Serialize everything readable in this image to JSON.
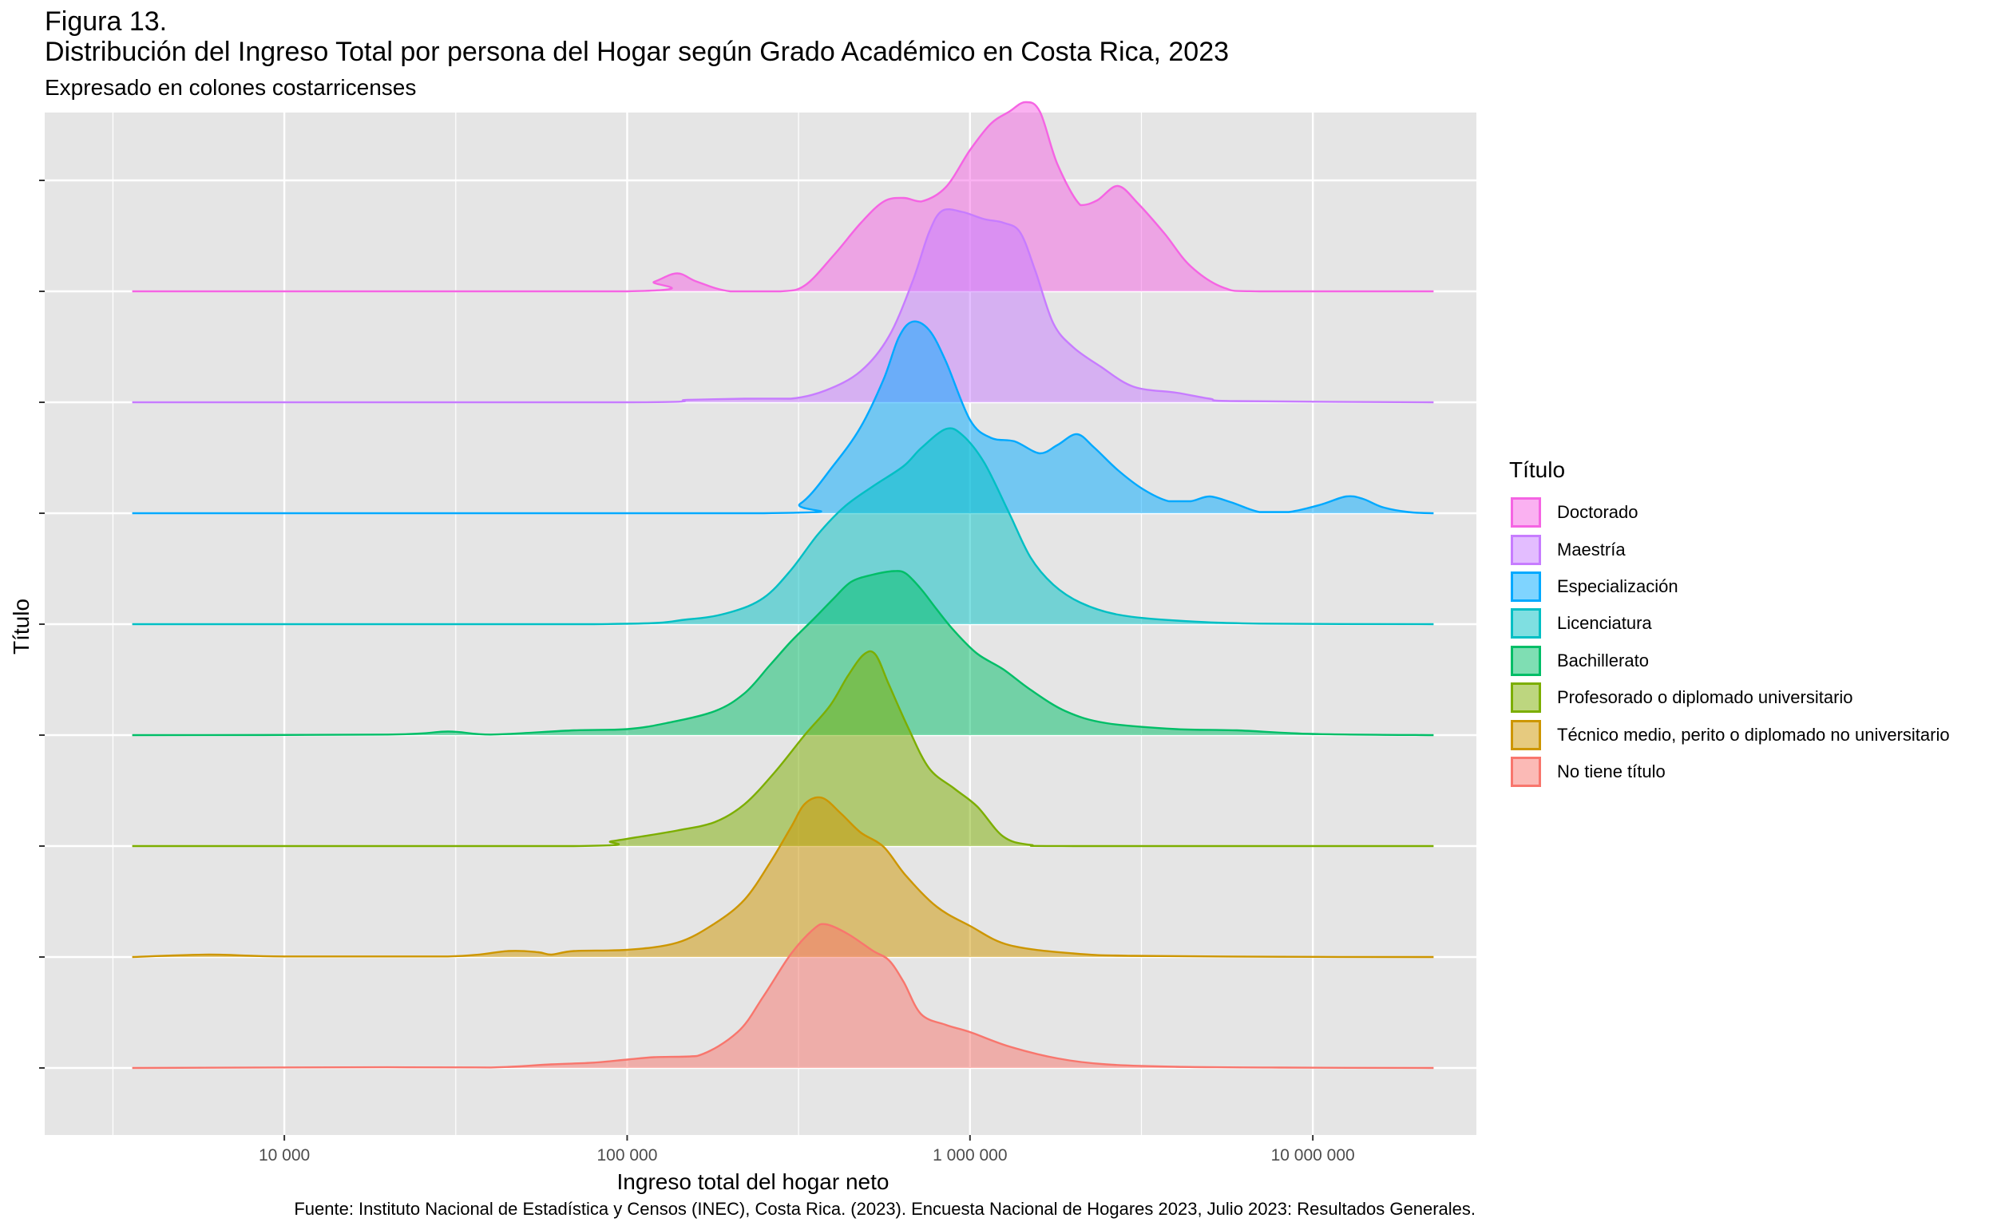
{
  "figure": {
    "label": "Figura 13.",
    "title": "Distribución del Ingreso Total por persona del Hogar según Grado Académico en Costa Rica, 2023",
    "subtitle": "Expresado en colones costarricenses",
    "caption": "Fuente: Instituto Nacional de Estadística y Censos (INEC), Costa Rica. (2023). Encuesta Nacional de Hogares 2023, Julio 2023: Resultados Generales."
  },
  "chart_data": {
    "type": "area",
    "subtype": "ridgeline density",
    "xlabel": "Ingreso total del hogar neto",
    "ylabel": "Título",
    "x_scale": "log10",
    "xlim": [
      2000,
      30000000
    ],
    "x_tick_values": [
      10000,
      100000,
      1000000,
      10000000
    ],
    "x_tick_labels": [
      "10 000",
      "100 000",
      "1 000 000",
      "10 000 000"
    ],
    "y_tick_labels": [],
    "grid": true,
    "background": "#e5e5e5",
    "legend": {
      "title": "Título",
      "position": "right",
      "entries": [
        "Doctorado",
        "Maestría",
        "Especialización",
        "Licenciatura",
        "Bachillerato",
        "Profesorado o diplomado universitario",
        "Técnico medio, perito o diplomado no universitario",
        "No tiene título"
      ]
    },
    "series": [
      {
        "name": "No tiene título",
        "color": "#F8766D",
        "points": [
          [
            3600,
            0
          ],
          [
            20000,
            0.006
          ],
          [
            40000,
            0.004
          ],
          [
            60000,
            0.03
          ],
          [
            80000,
            0.045
          ],
          [
            100000,
            0.07
          ],
          [
            120000,
            0.09
          ],
          [
            160000,
            0.1
          ],
          [
            210000,
            0.3
          ],
          [
            250000,
            0.6
          ],
          [
            300000,
            0.95
          ],
          [
            350000,
            1.16
          ],
          [
            380000,
            1.2
          ],
          [
            440000,
            1.12
          ],
          [
            520000,
            0.98
          ],
          [
            580000,
            0.9
          ],
          [
            640000,
            0.72
          ],
          [
            720000,
            0.45
          ],
          [
            850000,
            0.36
          ],
          [
            1000000,
            0.3
          ],
          [
            1300000,
            0.18
          ],
          [
            1800000,
            0.08
          ],
          [
            2500000,
            0.03
          ],
          [
            4000000,
            0.01
          ],
          [
            8000000,
            0.003
          ],
          [
            22500000,
            0
          ]
        ]
      },
      {
        "name": "Técnico medio, perito o diplomado no universitario",
        "color": "#CD9600",
        "points": [
          [
            3600,
            0
          ],
          [
            6000,
            0.02
          ],
          [
            10000,
            0.005
          ],
          [
            30000,
            0.005
          ],
          [
            45000,
            0.05
          ],
          [
            55000,
            0.04
          ],
          [
            60000,
            0.02
          ],
          [
            70000,
            0.05
          ],
          [
            100000,
            0.06
          ],
          [
            140000,
            0.12
          ],
          [
            180000,
            0.28
          ],
          [
            220000,
            0.48
          ],
          [
            260000,
            0.78
          ],
          [
            300000,
            1.08
          ],
          [
            330000,
            1.28
          ],
          [
            370000,
            1.33
          ],
          [
            420000,
            1.2
          ],
          [
            480000,
            1.04
          ],
          [
            560000,
            0.92
          ],
          [
            650000,
            0.68
          ],
          [
            800000,
            0.42
          ],
          [
            1000000,
            0.26
          ],
          [
            1300000,
            0.1
          ],
          [
            2000000,
            0.03
          ],
          [
            3000000,
            0.01
          ],
          [
            8000000,
            0.002
          ],
          [
            22500000,
            0
          ]
        ]
      },
      {
        "name": "Profesorado o diplomado universitario",
        "color": "#7CAE00",
        "points": [
          [
            3600,
            0
          ],
          [
            70000,
            0
          ],
          [
            90000,
            0.04
          ],
          [
            110000,
            0.08
          ],
          [
            140000,
            0.13
          ],
          [
            180000,
            0.2
          ],
          [
            220000,
            0.35
          ],
          [
            270000,
            0.62
          ],
          [
            330000,
            0.93
          ],
          [
            390000,
            1.17
          ],
          [
            440000,
            1.42
          ],
          [
            490000,
            1.6
          ],
          [
            530000,
            1.6
          ],
          [
            580000,
            1.35
          ],
          [
            660000,
            0.99
          ],
          [
            760000,
            0.65
          ],
          [
            900000,
            0.48
          ],
          [
            1050000,
            0.33
          ],
          [
            1250000,
            0.08
          ],
          [
            1500000,
            0.01
          ],
          [
            2000000,
            0
          ],
          [
            22500000,
            0
          ]
        ]
      },
      {
        "name": "Bachillerato",
        "color": "#00BE67",
        "points": [
          [
            3600,
            0
          ],
          [
            20000,
            0.005
          ],
          [
            30000,
            0.03
          ],
          [
            40000,
            0.005
          ],
          [
            70000,
            0.04
          ],
          [
            100000,
            0.05
          ],
          [
            130000,
            0.1
          ],
          [
            180000,
            0.2
          ],
          [
            220000,
            0.35
          ],
          [
            260000,
            0.58
          ],
          [
            300000,
            0.78
          ],
          [
            350000,
            0.97
          ],
          [
            400000,
            1.14
          ],
          [
            450000,
            1.28
          ],
          [
            520000,
            1.34
          ],
          [
            600000,
            1.37
          ],
          [
            650000,
            1.35
          ],
          [
            720000,
            1.22
          ],
          [
            800000,
            1.05
          ],
          [
            900000,
            0.87
          ],
          [
            1050000,
            0.68
          ],
          [
            1250000,
            0.55
          ],
          [
            1500000,
            0.38
          ],
          [
            1900000,
            0.2
          ],
          [
            2500000,
            0.1
          ],
          [
            4000000,
            0.05
          ],
          [
            6000000,
            0.04
          ],
          [
            10000000,
            0.01
          ],
          [
            22500000,
            0
          ]
        ]
      },
      {
        "name": "Licenciatura",
        "color": "#00BFC4",
        "points": [
          [
            3600,
            0
          ],
          [
            80000,
            0
          ],
          [
            150000,
            0.04
          ],
          [
            200000,
            0.1
          ],
          [
            250000,
            0.22
          ],
          [
            300000,
            0.45
          ],
          [
            360000,
            0.75
          ],
          [
            430000,
            0.98
          ],
          [
            520000,
            1.15
          ],
          [
            640000,
            1.32
          ],
          [
            720000,
            1.47
          ],
          [
            850000,
            1.63
          ],
          [
            950000,
            1.58
          ],
          [
            1100000,
            1.35
          ],
          [
            1300000,
            0.93
          ],
          [
            1500000,
            0.56
          ],
          [
            1750000,
            0.33
          ],
          [
            2100000,
            0.18
          ],
          [
            2700000,
            0.08
          ],
          [
            4000000,
            0.03
          ],
          [
            7000000,
            0.005
          ],
          [
            22500000,
            0
          ]
        ]
      },
      {
        "name": "Especialización",
        "color": "#00A9FF",
        "points": [
          [
            3600,
            0
          ],
          [
            250000,
            0
          ],
          [
            320000,
            0.08
          ],
          [
            400000,
            0.4
          ],
          [
            480000,
            0.72
          ],
          [
            560000,
            1.12
          ],
          [
            620000,
            1.47
          ],
          [
            680000,
            1.6
          ],
          [
            760000,
            1.53
          ],
          [
            850000,
            1.27
          ],
          [
            1000000,
            0.78
          ],
          [
            1150000,
            0.63
          ],
          [
            1350000,
            0.6
          ],
          [
            1600000,
            0.5
          ],
          [
            1800000,
            0.57
          ],
          [
            2050000,
            0.66
          ],
          [
            2300000,
            0.55
          ],
          [
            2700000,
            0.36
          ],
          [
            3200000,
            0.2
          ],
          [
            3800000,
            0.1
          ],
          [
            4400000,
            0.1
          ],
          [
            5000000,
            0.14
          ],
          [
            5800000,
            0.09
          ],
          [
            7000000,
            0.01
          ],
          [
            8500000,
            0.01
          ],
          [
            10500000,
            0.07
          ],
          [
            12500000,
            0.14
          ],
          [
            14000000,
            0.12
          ],
          [
            16000000,
            0.05
          ],
          [
            19000000,
            0.01
          ],
          [
            22500000,
            0
          ]
        ]
      },
      {
        "name": "Maestría",
        "color": "#C77CFF",
        "points": [
          [
            3600,
            0
          ],
          [
            100000,
            0
          ],
          [
            150000,
            0.02
          ],
          [
            220000,
            0.03
          ],
          [
            300000,
            0.03
          ],
          [
            380000,
            0.1
          ],
          [
            480000,
            0.26
          ],
          [
            580000,
            0.55
          ],
          [
            680000,
            1.01
          ],
          [
            760000,
            1.42
          ],
          [
            830000,
            1.6
          ],
          [
            950000,
            1.59
          ],
          [
            1100000,
            1.53
          ],
          [
            1250000,
            1.5
          ],
          [
            1400000,
            1.42
          ],
          [
            1550000,
            1.1
          ],
          [
            1750000,
            0.66
          ],
          [
            2000000,
            0.46
          ],
          [
            2400000,
            0.3
          ],
          [
            3000000,
            0.13
          ],
          [
            4000000,
            0.08
          ],
          [
            5000000,
            0.03
          ],
          [
            6000000,
            0.01
          ],
          [
            22500000,
            0
          ]
        ]
      },
      {
        "name": "Doctorado",
        "color": "#F564E3",
        "points": [
          [
            3600,
            0
          ],
          [
            100000,
            0
          ],
          [
            120000,
            0.08
          ],
          [
            140000,
            0.15
          ],
          [
            160000,
            0.08
          ],
          [
            200000,
            0
          ],
          [
            280000,
            0
          ],
          [
            330000,
            0.05
          ],
          [
            400000,
            0.3
          ],
          [
            480000,
            0.57
          ],
          [
            560000,
            0.75
          ],
          [
            640000,
            0.78
          ],
          [
            720000,
            0.75
          ],
          [
            850000,
            0.87
          ],
          [
            1000000,
            1.18
          ],
          [
            1150000,
            1.4
          ],
          [
            1300000,
            1.5
          ],
          [
            1450000,
            1.58
          ],
          [
            1600000,
            1.5
          ],
          [
            1800000,
            1.06
          ],
          [
            2100000,
            0.72
          ],
          [
            2350000,
            0.76
          ],
          [
            2700000,
            0.88
          ],
          [
            3100000,
            0.73
          ],
          [
            3700000,
            0.48
          ],
          [
            4400000,
            0.21
          ],
          [
            5500000,
            0.03
          ],
          [
            7000000,
            0
          ],
          [
            22500000,
            0
          ]
        ]
      }
    ]
  }
}
